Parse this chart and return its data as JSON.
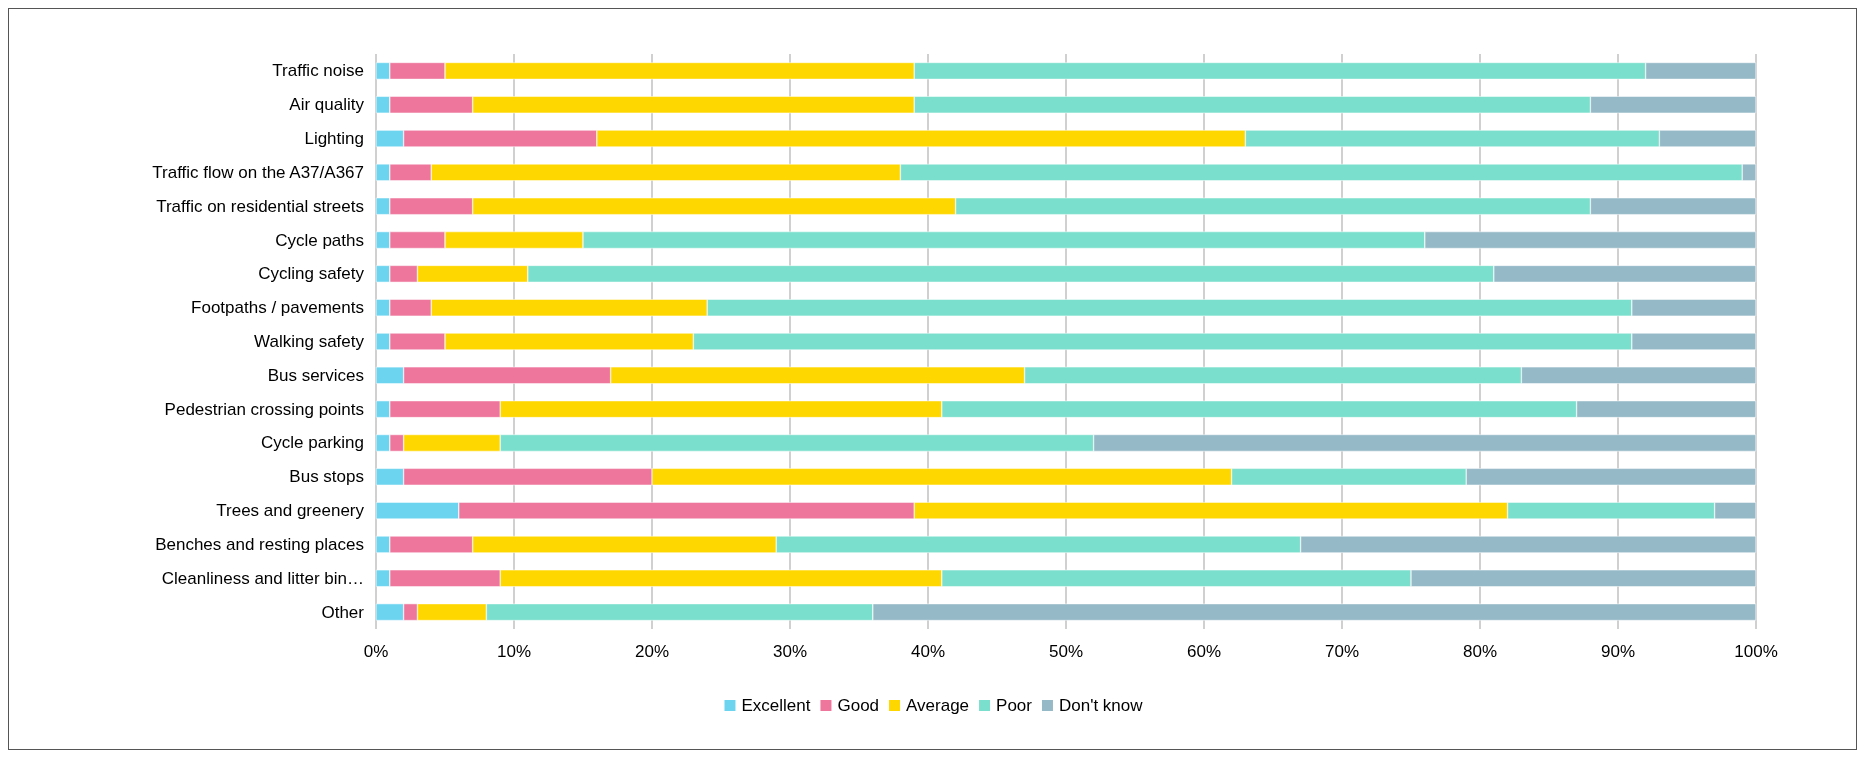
{
  "chart_data": {
    "type": "bar",
    "orientation": "horizontal",
    "stacked": true,
    "categories": [
      "Traffic noise",
      "Air quality",
      "Lighting",
      "Traffic flow on the A37/A367",
      "Traffic on residential streets",
      "Cycle paths",
      "Cycling safety",
      "Footpaths / pavements",
      "Walking safety",
      "Bus services",
      "Pedestrian crossing points",
      "Cycle parking",
      "Bus stops",
      "Trees and greenery",
      "Benches and resting places",
      "Cleanliness and litter bin…",
      "Other"
    ],
    "series": [
      {
        "name": "Excellent",
        "color": "#6dd4f0",
        "values": [
          1,
          1,
          2,
          1,
          1,
          1,
          1,
          1,
          1,
          2,
          1,
          1,
          2,
          6,
          1,
          1,
          2
        ]
      },
      {
        "name": "Good",
        "color": "#ee759c",
        "values": [
          4,
          6,
          14,
          3,
          6,
          4,
          2,
          3,
          4,
          15,
          8,
          1,
          18,
          33,
          6,
          8,
          1
        ]
      },
      {
        "name": "Average",
        "color": "#ffd700",
        "values": [
          34,
          32,
          47,
          34,
          35,
          10,
          8,
          20,
          18,
          30,
          32,
          7,
          42,
          43,
          22,
          32,
          5
        ]
      },
      {
        "name": "Poor",
        "color": "#7adfcc",
        "values": [
          53,
          49,
          30,
          61,
          46,
          61,
          70,
          67,
          68,
          36,
          46,
          43,
          17,
          15,
          38,
          34,
          28
        ]
      },
      {
        "name": "Don't know",
        "color": "#95b9c7",
        "values": [
          8,
          12,
          7,
          1,
          12,
          24,
          19,
          9,
          9,
          17,
          13,
          48,
          21,
          3,
          33,
          25,
          64
        ]
      }
    ],
    "xlim": [
      0,
      100
    ],
    "xticks": [
      {
        "value": 0,
        "label": "0%"
      },
      {
        "value": 10,
        "label": "10%"
      },
      {
        "value": 20,
        "label": "20%"
      },
      {
        "value": 30,
        "label": "30%"
      },
      {
        "value": 40,
        "label": "40%"
      },
      {
        "value": 50,
        "label": "50%"
      },
      {
        "value": 60,
        "label": "60%"
      },
      {
        "value": 70,
        "label": "70%"
      },
      {
        "value": 80,
        "label": "80%"
      },
      {
        "value": 90,
        "label": "90%"
      },
      {
        "value": 100,
        "label": "100%"
      }
    ],
    "grid": "x",
    "legend": "bottom"
  }
}
